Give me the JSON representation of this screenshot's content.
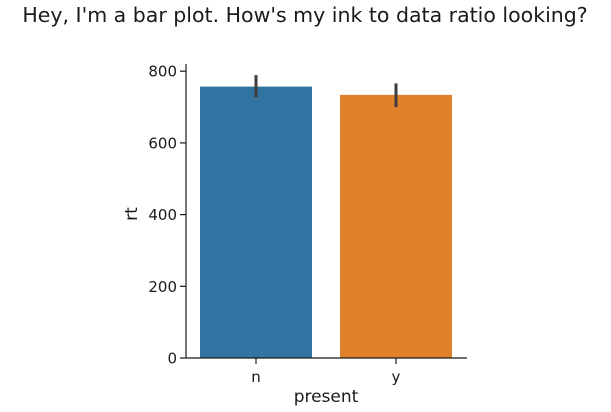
{
  "chart_data": {
    "type": "bar",
    "title": "Hey, I'm a bar plot. How's my ink to data ratio looking?",
    "xlabel": "present",
    "ylabel": "rt",
    "categories": [
      "n",
      "y"
    ],
    "values": [
      757,
      734
    ],
    "error_bars": [
      {
        "low": 727,
        "high": 789
      },
      {
        "low": 700,
        "high": 766
      }
    ],
    "colors": [
      "#3274a1",
      "#e1812c"
    ],
    "error_color": "#3d3d3d",
    "ylim": [
      0,
      820
    ],
    "yticks": [
      0,
      200,
      400,
      600,
      800
    ],
    "grid": false,
    "legend": "none"
  }
}
